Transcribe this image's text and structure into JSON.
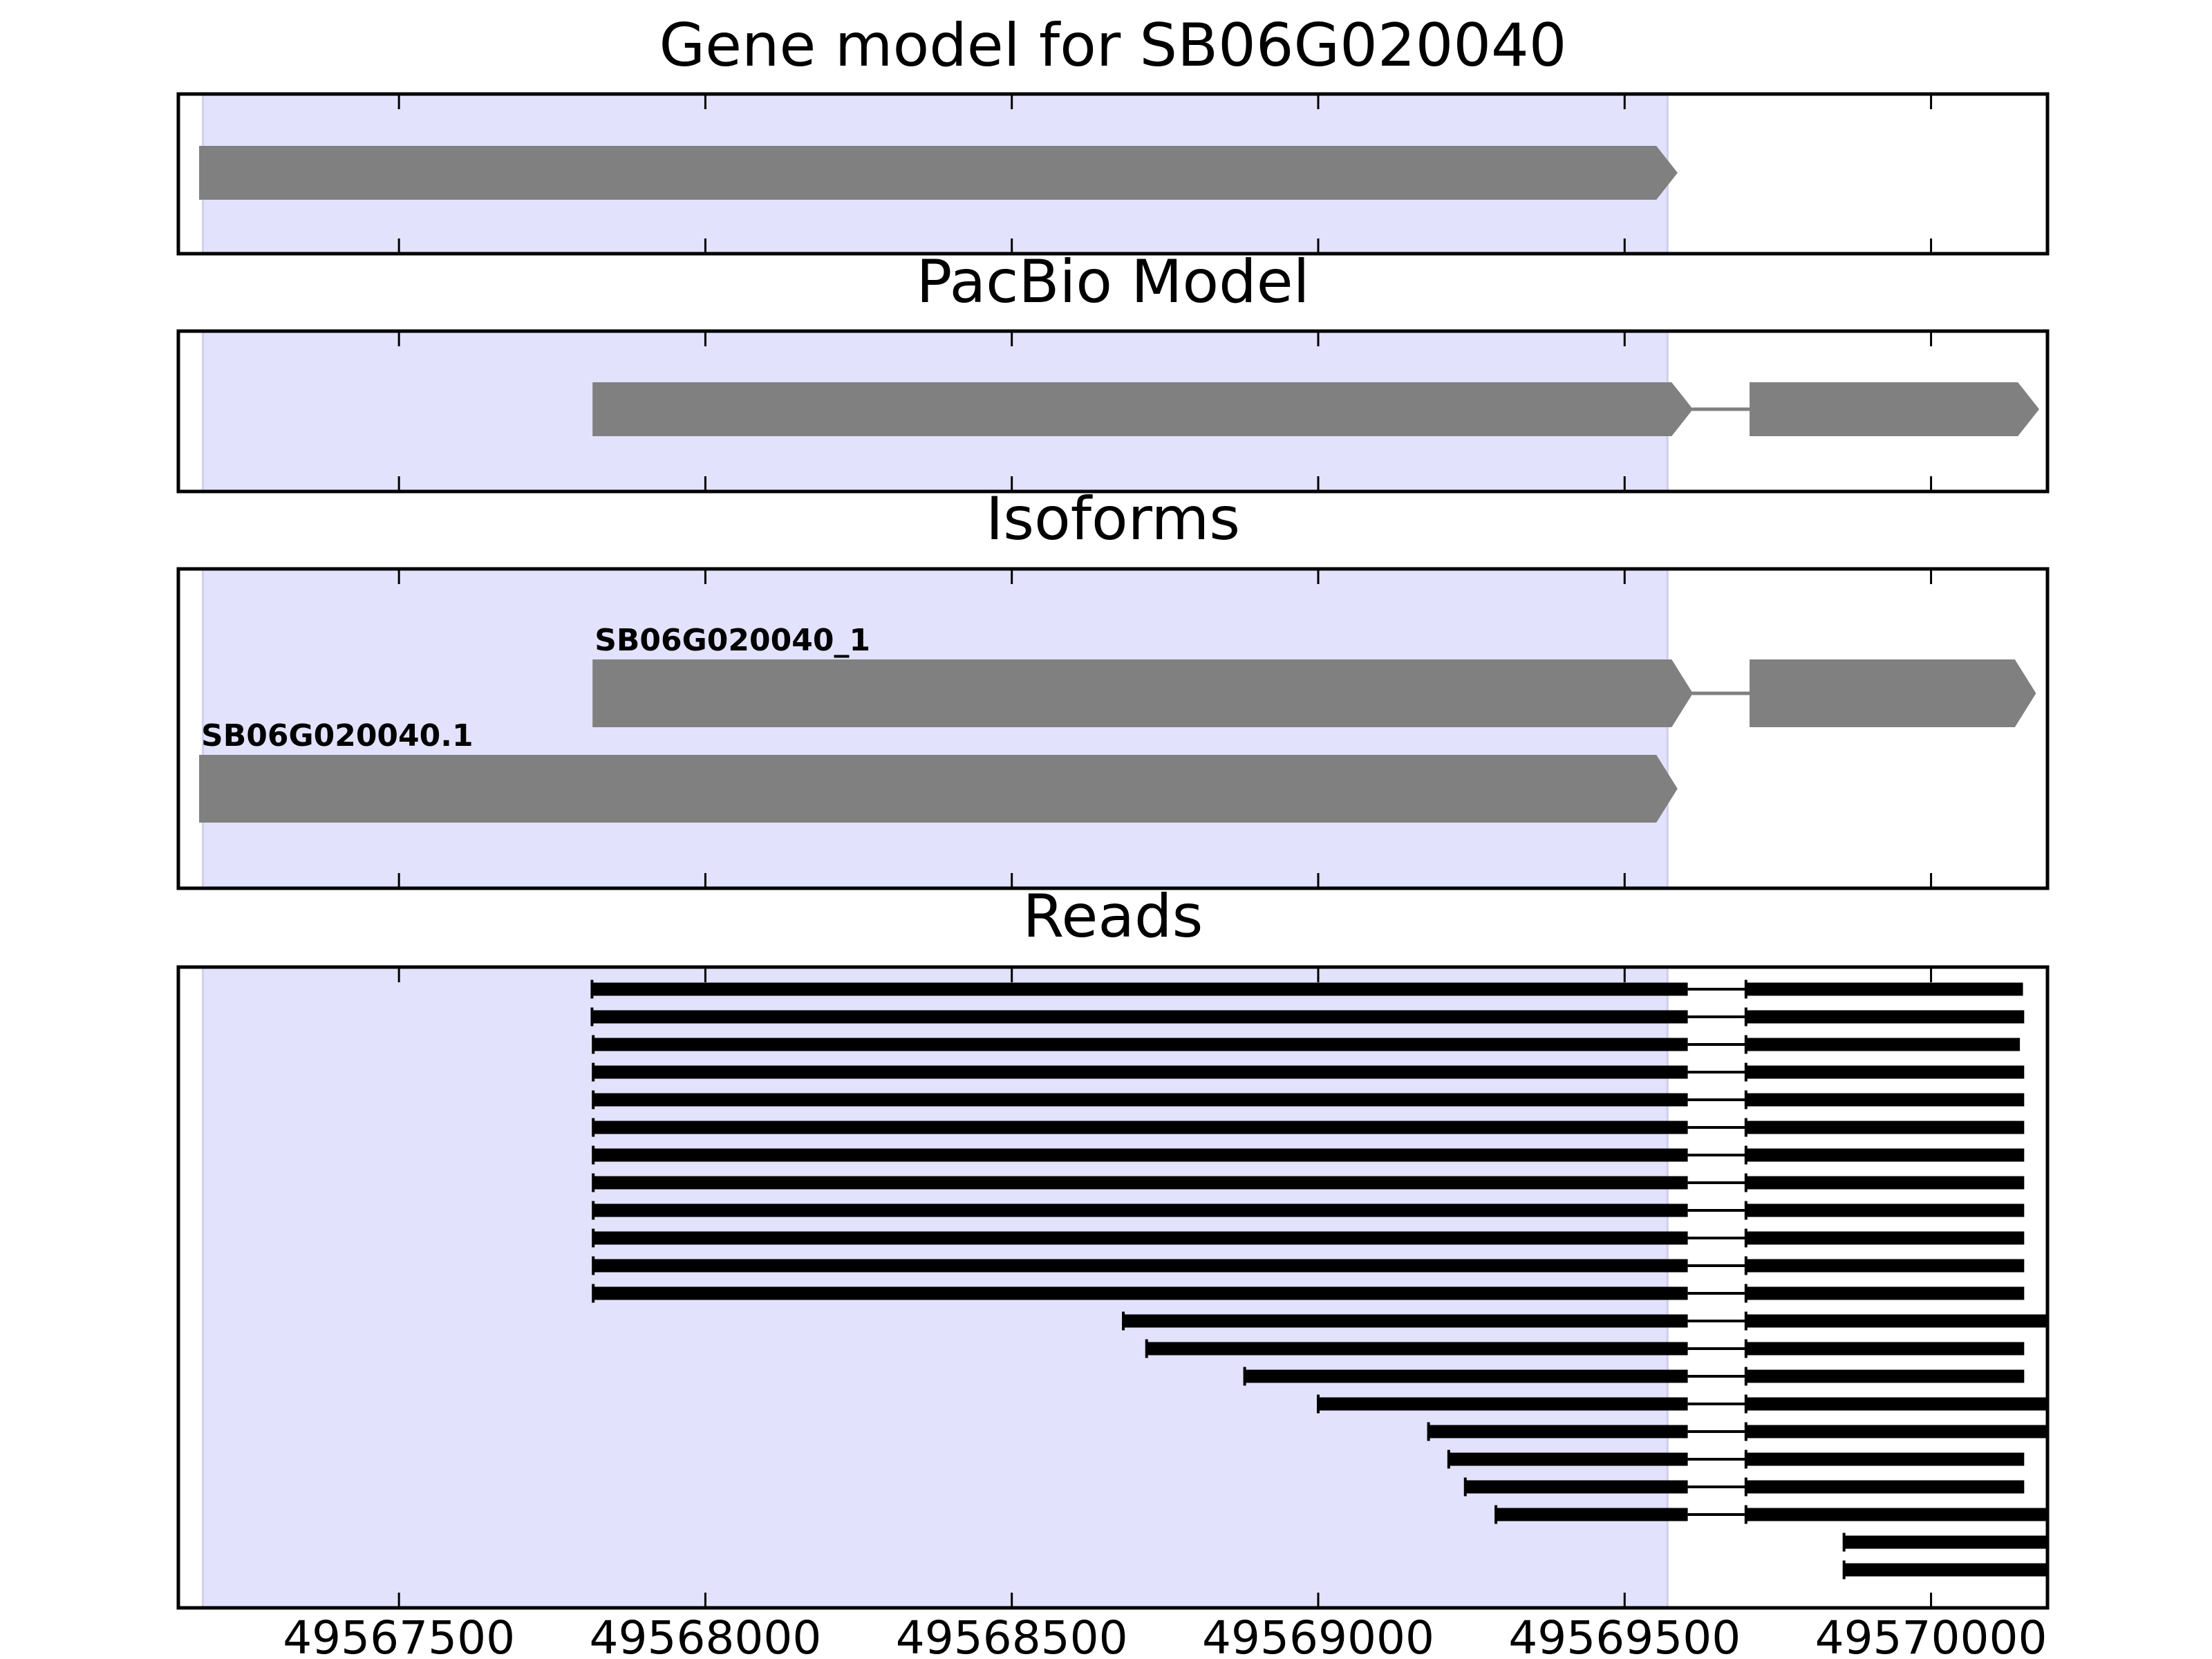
{
  "chart_data": {
    "type": "gene-track",
    "x_axis": {
      "ticks": [
        49567500,
        49568000,
        49568500,
        49569000,
        49569500,
        49570000
      ],
      "tick_labels": [
        "49567500",
        "49568000",
        "49568500",
        "49569000",
        "49569500",
        "49570000"
      ],
      "xlim": [
        49567140,
        49570190
      ]
    },
    "highlight_region": [
      49567180,
      49569570
    ],
    "colors": {
      "highlight": "#e2e2fc",
      "feature": "#808080",
      "read": "#000000",
      "frame": "#000000"
    },
    "panels": [
      {
        "id": "gene-model",
        "title": "Gene model for SB06G020040",
        "features": [
          {
            "exons": [
              [
                49567175,
                49569585
              ]
            ],
            "direction": "forward"
          }
        ]
      },
      {
        "id": "pacbio-model",
        "title": "PacBio Model",
        "features": [
          {
            "exons": [
              [
                49567817,
                49569610
              ],
              [
                49569705,
                49570175
              ]
            ],
            "direction": "forward"
          }
        ]
      },
      {
        "id": "isoforms",
        "title": "Isoforms",
        "features": [
          {
            "label": "SB06G020040_1",
            "exons": [
              [
                49567817,
                49569610
              ],
              [
                49569705,
                49570170
              ]
            ],
            "direction": "forward"
          },
          {
            "label": "SB06G020040.1",
            "exons": [
              [
                49567175,
                49569585
              ]
            ],
            "direction": "forward"
          }
        ]
      },
      {
        "id": "reads",
        "title": "Reads",
        "reads": [
          [
            [
              49567815,
              49569603
            ],
            [
              49569698,
              49570150
            ]
          ],
          [
            [
              49567815,
              49569603
            ],
            [
              49569698,
              49570152
            ]
          ],
          [
            [
              49567817,
              49569603
            ],
            [
              49569698,
              49570145
            ]
          ],
          [
            [
              49567817,
              49569603
            ],
            [
              49569698,
              49570152
            ]
          ],
          [
            [
              49567817,
              49569603
            ],
            [
              49569698,
              49570152
            ]
          ],
          [
            [
              49567817,
              49569603
            ],
            [
              49569698,
              49570152
            ]
          ],
          [
            [
              49567817,
              49569603
            ],
            [
              49569698,
              49570152
            ]
          ],
          [
            [
              49567817,
              49569603
            ],
            [
              49569698,
              49570152
            ]
          ],
          [
            [
              49567817,
              49569603
            ],
            [
              49569698,
              49570152
            ]
          ],
          [
            [
              49567817,
              49569603
            ],
            [
              49569698,
              49570152
            ]
          ],
          [
            [
              49567817,
              49569603
            ],
            [
              49569698,
              49570152
            ]
          ],
          [
            [
              49567817,
              49569603
            ],
            [
              49569698,
              49570152
            ]
          ],
          [
            [
              49568682,
              49569603
            ],
            [
              49569698,
              49570190
            ]
          ],
          [
            [
              49568720,
              49569603
            ],
            [
              49569698,
              49570152
            ]
          ],
          [
            [
              49568880,
              49569603
            ],
            [
              49569698,
              49570152
            ]
          ],
          [
            [
              49569000,
              49569603
            ],
            [
              49569698,
              49570190
            ]
          ],
          [
            [
              49569180,
              49569603
            ],
            [
              49569698,
              49570190
            ]
          ],
          [
            [
              49569213,
              49569603
            ],
            [
              49569698,
              49570152
            ]
          ],
          [
            [
              49569240,
              49569603
            ],
            [
              49569698,
              49570152
            ]
          ],
          [
            [
              49569290,
              49569603
            ],
            [
              49569698,
              49570190
            ]
          ],
          [
            [
              49569858,
              49570190
            ]
          ],
          [
            [
              49569858,
              49570190
            ]
          ]
        ]
      }
    ]
  }
}
